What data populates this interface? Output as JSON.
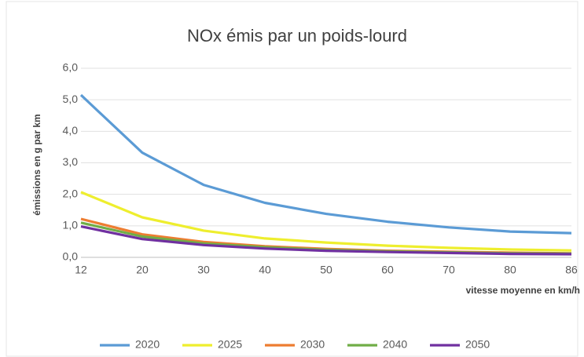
{
  "chart_data": {
    "type": "line",
    "title": "NOx émis par un poids-lourd",
    "y_label": "émissions en g par km",
    "x_label": "vitesse moyenne en km/h",
    "categories": [
      "12",
      "20",
      "30",
      "40",
      "50",
      "60",
      "70",
      "80",
      "86"
    ],
    "ylim": [
      0,
      6
    ],
    "yticks": [
      {
        "value": 0,
        "label": "0,0"
      },
      {
        "value": 1,
        "label": "1,0"
      },
      {
        "value": 2,
        "label": "2,0"
      },
      {
        "value": 3,
        "label": "3,0"
      },
      {
        "value": 4,
        "label": "4,0"
      },
      {
        "value": 5,
        "label": "5,0"
      },
      {
        "value": 6,
        "label": "6,0"
      }
    ],
    "grid": true,
    "legend": "bottom",
    "series": [
      {
        "name": "2020",
        "color": "#5b9bd5",
        "values": [
          5.15,
          3.32,
          2.3,
          1.73,
          1.38,
          1.13,
          0.95,
          0.82,
          0.77
        ]
      },
      {
        "name": "2025",
        "color": "#eeee2e",
        "values": [
          2.07,
          1.27,
          0.85,
          0.6,
          0.47,
          0.37,
          0.3,
          0.25,
          0.22
        ]
      },
      {
        "name": "2030",
        "color": "#ed7d31",
        "values": [
          1.22,
          0.73,
          0.49,
          0.35,
          0.27,
          0.21,
          0.18,
          0.15,
          0.13
        ]
      },
      {
        "name": "2040",
        "color": "#70ad47",
        "values": [
          1.1,
          0.66,
          0.44,
          0.32,
          0.24,
          0.19,
          0.16,
          0.13,
          0.12
        ]
      },
      {
        "name": "2050",
        "color": "#7030a0",
        "values": [
          0.98,
          0.58,
          0.39,
          0.28,
          0.21,
          0.17,
          0.14,
          0.11,
          0.1
        ]
      }
    ]
  }
}
